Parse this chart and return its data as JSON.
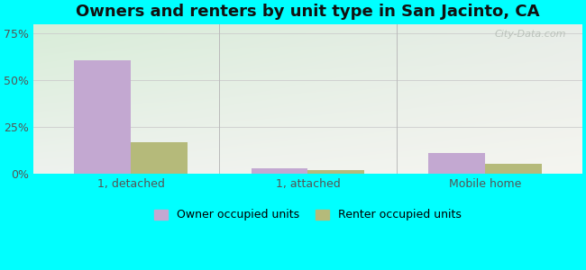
{
  "title": "Owners and renters by unit type in San Jacinto, CA",
  "categories": [
    "1, detached",
    "1, attached",
    "Mobile home"
  ],
  "owner_values": [
    60.5,
    3.0,
    11.0
  ],
  "renter_values": [
    17.0,
    2.0,
    5.5
  ],
  "owner_color": "#c3a8d1",
  "renter_color": "#b5ba7a",
  "yticks": [
    0,
    25,
    50,
    75
  ],
  "ytick_labels": [
    "0%",
    "25%",
    "50%",
    "75%"
  ],
  "ylim": [
    0,
    80
  ],
  "bar_width": 0.32,
  "outer_bg": "#00ffff",
  "legend_owner": "Owner occupied units",
  "legend_renter": "Renter occupied units",
  "title_fontsize": 13,
  "axis_fontsize": 9,
  "legend_fontsize": 9,
  "watermark": "City-Data.com"
}
